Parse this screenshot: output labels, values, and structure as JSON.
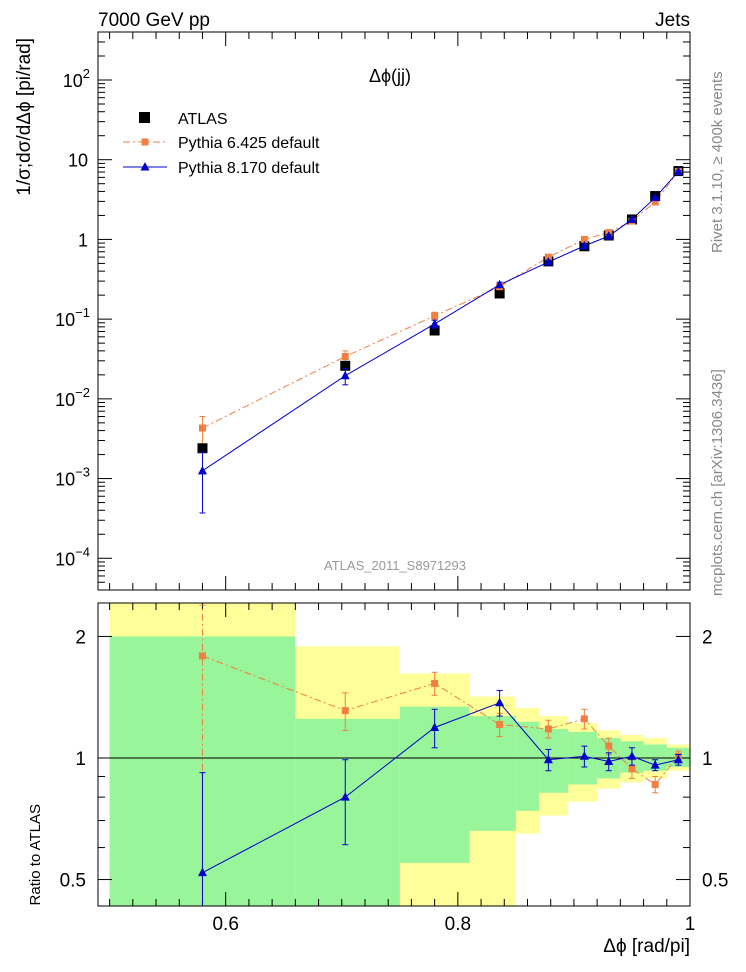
{
  "header": {
    "left": "7000 GeV pp",
    "right": "Jets"
  },
  "side_labels": {
    "rivet": "Rivet 3.1.10, ≥ 400k events",
    "source": "mcplots.cern.ch [arXiv:1306.3436]"
  },
  "colors": {
    "atlas": "#000000",
    "pythia6": "#f08040",
    "pythia8": "#0000cc",
    "band_inner": "#99f599",
    "band_outer": "#ffff99"
  },
  "chart_data": [
    {
      "type": "line",
      "panel": "main",
      "title": "Δϕ(jj)",
      "watermark": "ATLAS_2011_S8971293",
      "ylabel": "1/σ;dσ/dΔϕ [pi/rad]",
      "yscale": "log",
      "xlim": [
        0.49,
        1.0
      ],
      "ylim": [
        4e-05,
        400
      ],
      "yticks": [
        {
          "value": 100,
          "base": "10",
          "exp": "2"
        },
        {
          "value": 10,
          "base": "10",
          "exp": ""
        },
        {
          "value": 1,
          "base": "1",
          "exp": ""
        },
        {
          "value": 0.1,
          "base": "10",
          "exp": "−1"
        },
        {
          "value": 0.01,
          "base": "10",
          "exp": "−2"
        },
        {
          "value": 0.001,
          "base": "10",
          "exp": "−3"
        },
        {
          "value": 0.0001,
          "base": "10",
          "exp": "−4"
        }
      ],
      "legend": [
        "ATLAS",
        "Pythia 6.425 default",
        "Pythia 8.170 default"
      ],
      "series": [
        {
          "name": "ATLAS",
          "marker": "square",
          "x": [
            0.58,
            0.703,
            0.78,
            0.836,
            0.878,
            0.909,
            0.93,
            0.95,
            0.97,
            0.99
          ],
          "y": [
            0.0024,
            0.026,
            0.072,
            0.21,
            0.53,
            0.82,
            1.12,
            1.78,
            3.5,
            7.2
          ]
        },
        {
          "name": "Pythia 6.425 default",
          "marker": "square-small",
          "style": "dashdot",
          "x": [
            0.58,
            0.703,
            0.78,
            0.836,
            0.878,
            0.909,
            0.93,
            0.95,
            0.97,
            0.99
          ],
          "y": [
            0.0043,
            0.034,
            0.11,
            0.255,
            0.6,
            1.0,
            1.22,
            1.7,
            2.95,
            7.1
          ],
          "err": [
            0.0017,
            0.006,
            0.012,
            0.025,
            0.04,
            0.06,
            0.07,
            0.08,
            0.1,
            0.2
          ]
        },
        {
          "name": "Pythia 8.170 default",
          "marker": "triangle",
          "style": "solid",
          "x": [
            0.58,
            0.703,
            0.78,
            0.836,
            0.878,
            0.909,
            0.93,
            0.95,
            0.97,
            0.99
          ],
          "y": [
            0.00125,
            0.0195,
            0.087,
            0.27,
            0.52,
            0.83,
            1.1,
            1.78,
            3.35,
            7.1
          ],
          "err_low": [
            0.00088,
            0.0045,
            0.01,
            0.02,
            0.03,
            0.04,
            0.05,
            0.07,
            0.1,
            0.2
          ],
          "err_high": [
            0.00088,
            0.0045,
            0.01,
            0.02,
            0.03,
            0.04,
            0.05,
            0.07,
            0.1,
            0.2
          ]
        }
      ]
    },
    {
      "type": "line",
      "panel": "ratio",
      "xlabel": "Δϕ [rad/pi]",
      "ylabel": "Ratio to ATLAS",
      "yscale": "log",
      "xlim": [
        0.49,
        1.0
      ],
      "ylim": [
        0.43,
        2.42
      ],
      "xticks": [
        0.6,
        0.8,
        1
      ],
      "xtick_labels": [
        "0.6",
        "0.8",
        "1"
      ],
      "yticks": [
        0.5,
        1,
        2
      ],
      "ytick_labels": [
        "0.5",
        "1",
        "2"
      ],
      "reference_line": 1,
      "bands": {
        "edges": [
          0.5,
          0.66,
          0.75,
          0.81,
          0.85,
          0.87,
          0.895,
          0.92,
          0.94,
          0.96,
          0.98,
          1.0
        ],
        "inner_low": [
          0.43,
          0.43,
          0.55,
          0.66,
          0.74,
          0.82,
          0.86,
          0.89,
          0.92,
          0.93,
          0.95
        ],
        "inner_high": [
          2.0,
          1.25,
          1.34,
          1.27,
          1.23,
          1.18,
          1.16,
          1.12,
          1.1,
          1.08,
          1.06
        ],
        "outer_low": [
          0.43,
          0.43,
          0.43,
          0.43,
          0.65,
          0.72,
          0.78,
          0.84,
          0.87,
          0.89,
          0.93
        ],
        "outer_high": [
          2.42,
          1.89,
          1.62,
          1.42,
          1.33,
          1.27,
          1.22,
          1.17,
          1.14,
          1.12,
          1.08
        ]
      },
      "series": [
        {
          "name": "Pythia 6.425 default",
          "style": "dashdot",
          "x": [
            0.58,
            0.703,
            0.78,
            0.836,
            0.878,
            0.909,
            0.93,
            0.95,
            0.97,
            0.99
          ],
          "y": [
            1.79,
            1.31,
            1.53,
            1.21,
            1.18,
            1.25,
            1.07,
            0.94,
            0.86,
            1.01
          ],
          "err_low": [
            0.86,
            0.14,
            0.1,
            0.08,
            0.06,
            0.07,
            0.05,
            0.05,
            0.04,
            0.03
          ],
          "err_high": [
            0.6,
            0.14,
            0.1,
            0.08,
            0.06,
            0.07,
            0.05,
            0.05,
            0.04,
            0.03
          ]
        },
        {
          "name": "Pythia 8.170 default",
          "style": "solid",
          "x": [
            0.58,
            0.703,
            0.78,
            0.836,
            0.878,
            0.909,
            0.93,
            0.95,
            0.97,
            0.99
          ],
          "y": [
            0.52,
            0.8,
            1.19,
            1.37,
            0.99,
            1.01,
            0.98,
            1.01,
            0.96,
            0.99
          ],
          "err_low": [
            0.14,
            0.19,
            0.13,
            0.1,
            0.06,
            0.06,
            0.05,
            0.05,
            0.03,
            0.03
          ],
          "err_high": [
            0.4,
            0.19,
            0.13,
            0.1,
            0.06,
            0.06,
            0.05,
            0.05,
            0.03,
            0.03
          ]
        }
      ]
    }
  ]
}
